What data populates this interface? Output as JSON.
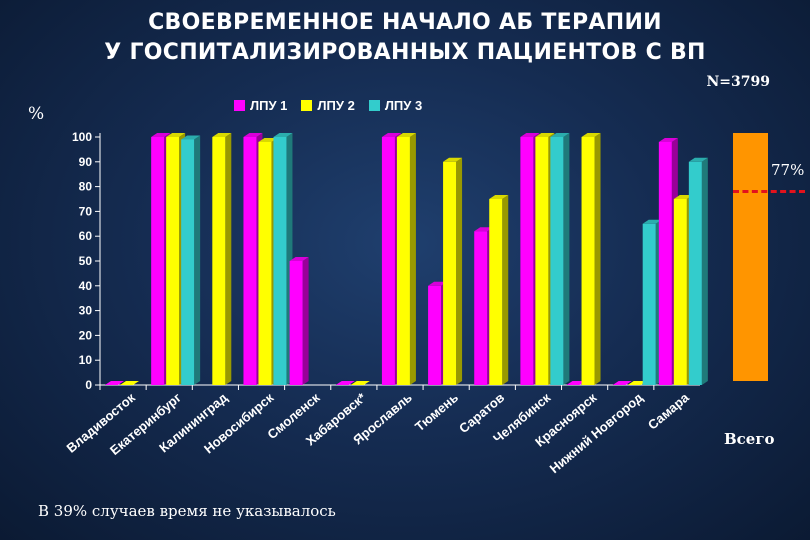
{
  "title_line1": "СВОЕВРЕМЕННОЕ НАЧАЛО АБ ТЕРАПИИ",
  "title_line2": "У ГОСПИТАЛИЗИРОВАННЫХ ПАЦИЕНТОВ С ВП",
  "n_label": "N=3799",
  "footnote": "В 39% случаев время не указывалось",
  "chart_data": [
    {
      "type": "bar",
      "ylabel": "%",
      "ylim": [
        0,
        100
      ],
      "yticks": [
        0,
        10,
        20,
        30,
        40,
        50,
        60,
        70,
        80,
        90,
        100
      ],
      "legend_position": "top",
      "categories": [
        "Владивосток",
        "Екатеринбург",
        "Калининград",
        "Новосибирск",
        "Смоленск",
        "Хабаровск*",
        "Ярославль",
        "Тюмень",
        "Саратов",
        "Челябинск",
        "Красноярск",
        "Нижний Новгород",
        "Самара"
      ],
      "series": [
        {
          "name": "ЛПУ 1",
          "color": "#ff00ff",
          "values": [
            0,
            100,
            null,
            100,
            50,
            0,
            100,
            40,
            62,
            100,
            0,
            0,
            98
          ]
        },
        {
          "name": "ЛПУ 2",
          "color": "#ffff00",
          "values": [
            0,
            100,
            100,
            98,
            null,
            0,
            100,
            90,
            75,
            100,
            100,
            0,
            75
          ]
        },
        {
          "name": "ЛПУ 3",
          "color": "#33cccc",
          "values": [
            null,
            99,
            null,
            100,
            null,
            null,
            null,
            null,
            null,
            100,
            null,
            65,
            90
          ]
        }
      ]
    },
    {
      "type": "bar",
      "categories": [
        "Всего"
      ],
      "values": [
        100
      ],
      "color": "#ff9500",
      "reference_line": {
        "label": "77%",
        "value": 77,
        "color": "#e3121c",
        "style": "dashed"
      }
    }
  ]
}
